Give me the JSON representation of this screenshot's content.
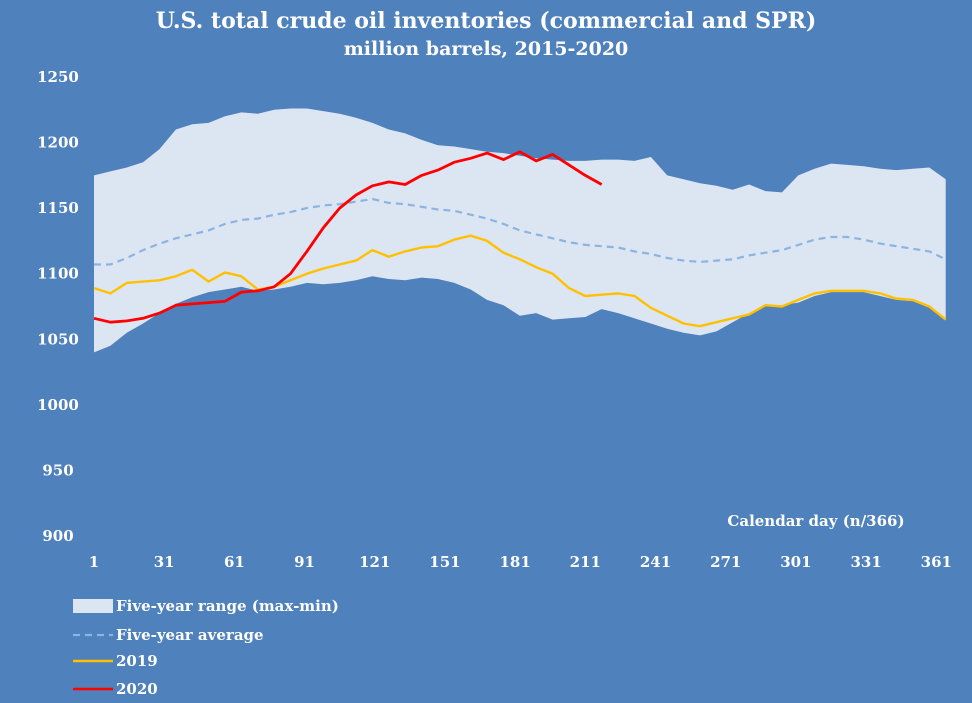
{
  "chart_data": {
    "type": "line",
    "title": "U.S. total crude oil inventories (commercial and SPR)",
    "subtitle": "million barrels, 2015-2020",
    "xlabel": "Calendar day (n/366)",
    "ylabel": "",
    "xlim": [
      1,
      366
    ],
    "ylim": [
      900,
      1250
    ],
    "x_ticks": [
      1,
      31,
      61,
      91,
      121,
      151,
      181,
      211,
      241,
      271,
      301,
      331,
      361
    ],
    "y_ticks": [
      1250,
      1200,
      1150,
      1100,
      1050,
      1000,
      950,
      900
    ],
    "colors": {
      "background": "#4f81bd",
      "range_fill": "#dce6f2",
      "average": "#8db3e2",
      "y2019": "#ffc000",
      "y2020": "#ff0000",
      "text": "#ffffff"
    },
    "series": [
      {
        "name": "Five-year range (max-min)",
        "kind": "band",
        "x": [
          1,
          8,
          15,
          22,
          29,
          36,
          43,
          50,
          57,
          64,
          71,
          78,
          85,
          92,
          99,
          106,
          113,
          120,
          127,
          134,
          141,
          148,
          155,
          162,
          169,
          176,
          183,
          190,
          197,
          204,
          211,
          218,
          225,
          232,
          239,
          246,
          253,
          260,
          267,
          274,
          281,
          288,
          295,
          302,
          309,
          316,
          323,
          330,
          337,
          344,
          351,
          358,
          365
        ],
        "upper": [
          1175,
          1178,
          1181,
          1185,
          1195,
          1210,
          1214,
          1215,
          1220,
          1223,
          1222,
          1225,
          1226,
          1226,
          1224,
          1222,
          1219,
          1215,
          1210,
          1207,
          1202,
          1198,
          1197,
          1195,
          1193,
          1192,
          1190,
          1188,
          1187,
          1186,
          1186,
          1187,
          1187,
          1186,
          1189,
          1175,
          1172,
          1169,
          1167,
          1164,
          1168,
          1163,
          1162,
          1175,
          1180,
          1184,
          1183,
          1182,
          1180,
          1179,
          1180,
          1181,
          1172
        ],
        "lower": [
          1040,
          1045,
          1055,
          1062,
          1070,
          1077,
          1082,
          1086,
          1088,
          1090,
          1087,
          1088,
          1090,
          1093,
          1092,
          1093,
          1095,
          1098,
          1096,
          1095,
          1097,
          1096,
          1093,
          1088,
          1080,
          1076,
          1068,
          1070,
          1065,
          1066,
          1067,
          1073,
          1070,
          1066,
          1062,
          1058,
          1055,
          1053,
          1056,
          1063,
          1070,
          1075,
          1076,
          1078,
          1083,
          1086,
          1086,
          1086,
          1083,
          1080,
          1079,
          1074,
          1066
        ]
      },
      {
        "name": "Five-year average",
        "kind": "dashed",
        "x": [
          1,
          8,
          15,
          22,
          29,
          36,
          43,
          50,
          57,
          64,
          71,
          78,
          85,
          92,
          99,
          106,
          113,
          120,
          127,
          134,
          141,
          148,
          155,
          162,
          169,
          176,
          183,
          190,
          197,
          204,
          211,
          218,
          225,
          232,
          239,
          246,
          253,
          260,
          267,
          274,
          281,
          288,
          295,
          302,
          309,
          316,
          323,
          330,
          337,
          344,
          351,
          358,
          365
        ],
        "values": [
          1107,
          1107,
          1112,
          1118,
          1123,
          1127,
          1130,
          1133,
          1138,
          1141,
          1142,
          1145,
          1147,
          1150,
          1152,
          1153,
          1155,
          1157,
          1154,
          1153,
          1151,
          1149,
          1148,
          1145,
          1142,
          1138,
          1133,
          1130,
          1127,
          1124,
          1122,
          1121,
          1120,
          1117,
          1115,
          1112,
          1110,
          1109,
          1110,
          1111,
          1114,
          1116,
          1118,
          1122,
          1126,
          1128,
          1128,
          1126,
          1123,
          1121,
          1119,
          1117,
          1111
        ]
      },
      {
        "name": "2019",
        "kind": "line",
        "x": [
          1,
          8,
          15,
          22,
          29,
          36,
          43,
          50,
          57,
          64,
          71,
          78,
          85,
          92,
          99,
          106,
          113,
          120,
          127,
          134,
          141,
          148,
          155,
          162,
          169,
          176,
          183,
          190,
          197,
          204,
          211,
          218,
          225,
          232,
          239,
          246,
          253,
          260,
          267,
          274,
          281,
          288,
          295,
          302,
          309,
          316,
          323,
          330,
          337,
          344,
          351,
          358,
          365
        ],
        "values": [
          1089,
          1085,
          1093,
          1094,
          1095,
          1098,
          1103,
          1094,
          1101,
          1098,
          1088,
          1090,
          1095,
          1100,
          1104,
          1107,
          1110,
          1118,
          1113,
          1117,
          1120,
          1121,
          1126,
          1129,
          1125,
          1116,
          1111,
          1105,
          1100,
          1089,
          1083,
          1084,
          1085,
          1083,
          1074,
          1068,
          1062,
          1060,
          1063,
          1066,
          1069,
          1076,
          1075,
          1080,
          1085,
          1087,
          1087,
          1087,
          1085,
          1081,
          1080,
          1075,
          1065
        ]
      },
      {
        "name": "2020",
        "kind": "line",
        "x": [
          1,
          8,
          15,
          22,
          29,
          36,
          43,
          50,
          57,
          64,
          71,
          78,
          85,
          92,
          99,
          106,
          113,
          120,
          127,
          134,
          141,
          148,
          155,
          162,
          169,
          176,
          183,
          190,
          197,
          204,
          211,
          218
        ],
        "values": [
          1066,
          1063,
          1064,
          1066,
          1070,
          1076,
          1077,
          1078,
          1079,
          1086,
          1087,
          1090,
          1100,
          1117,
          1135,
          1150,
          1160,
          1167,
          1170,
          1168,
          1175,
          1179,
          1185,
          1188,
          1192,
          1187,
          1193,
          1186,
          1191,
          1183,
          1175,
          1168
        ]
      }
    ],
    "legend": {
      "position": "bottom-left",
      "items": [
        "Five-year range (max-min)",
        "Five-year average",
        "2019",
        "2020"
      ]
    }
  }
}
